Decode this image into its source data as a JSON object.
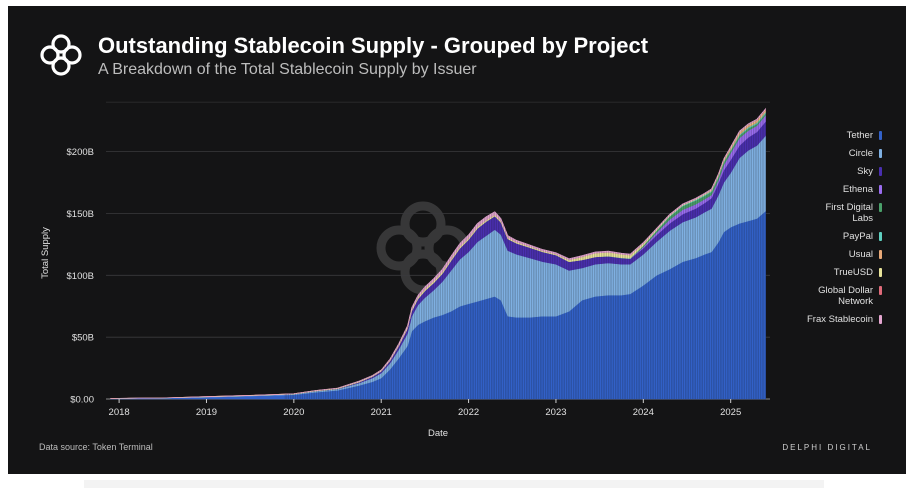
{
  "header": {
    "title": "Outstanding Stablecoin Supply - Grouped by Project",
    "subtitle": "A Breakdown of the Total Stablecoin Supply by Issuer"
  },
  "footer": {
    "source": "Data source: Token Terminal",
    "brand": "DELPHI DIGITAL"
  },
  "logo": {
    "icon": "delphi-knot-logo-icon"
  },
  "chart_data": {
    "type": "area",
    "stacked": true,
    "xlabel": "Date",
    "ylabel": "Total Supply",
    "x_ticks": [
      "2018",
      "2019",
      "2020",
      "2021",
      "2022",
      "2023",
      "2024",
      "2025"
    ],
    "y_ticks": [
      "$0.00",
      "$50B",
      "$100B",
      "$150B",
      "$200B"
    ],
    "y_tick_values": [
      0,
      50,
      100,
      150,
      200
    ],
    "x_range": [
      2017.85,
      2025.45
    ],
    "y_range": [
      0,
      245
    ],
    "grid": "horizontal",
    "legend_position": "right",
    "units": "USD billions",
    "x": [
      2017.9,
      2018.0,
      2018.5,
      2019.0,
      2019.5,
      2019.75,
      2020.0,
      2020.25,
      2020.5,
      2020.75,
      2020.9,
      2021.0,
      2021.1,
      2021.2,
      2021.3,
      2021.35,
      2021.42,
      2021.5,
      2021.6,
      2021.7,
      2021.8,
      2021.9,
      2022.0,
      2022.1,
      2022.2,
      2022.3,
      2022.37,
      2022.45,
      2022.55,
      2022.7,
      2022.85,
      2023.0,
      2023.15,
      2023.3,
      2023.45,
      2023.6,
      2023.75,
      2023.85,
      2024.0,
      2024.15,
      2024.3,
      2024.45,
      2024.6,
      2024.7,
      2024.78,
      2024.86,
      2024.92,
      2025.0,
      2025.1,
      2025.2,
      2025.3,
      2025.4
    ],
    "series": [
      {
        "name": "Tether",
        "color": "#3261c8",
        "values": [
          0.3,
          0.5,
          0.8,
          1.5,
          2.5,
          3.0,
          3.5,
          5.5,
          7.0,
          11.0,
          14.0,
          17.0,
          24.0,
          33.0,
          43.0,
          55.0,
          60.0,
          63.0,
          66.0,
          68.0,
          71.0,
          75.0,
          77.0,
          79.0,
          81.0,
          83.0,
          80.0,
          67.0,
          66.0,
          66.0,
          67.0,
          67.0,
          71.0,
          80.0,
          83.0,
          84.0,
          84.0,
          85.0,
          92.0,
          100.0,
          105.0,
          111.0,
          114.0,
          117.0,
          119.0,
          127.0,
          135.0,
          139.0,
          142.0,
          144.0,
          146.0,
          152.0
        ]
      },
      {
        "name": "Circle",
        "color": "#7fb0e2",
        "values": [
          0.0,
          0.0,
          0.0,
          0.2,
          0.2,
          0.3,
          0.5,
          0.8,
          1.0,
          2.0,
          3.0,
          4.0,
          5.0,
          7.0,
          10.0,
          12.0,
          16.0,
          19.0,
          22.0,
          27.0,
          33.0,
          38.0,
          42.0,
          48.0,
          51.0,
          54.0,
          53.0,
          53.0,
          51.0,
          48.0,
          44.0,
          42.0,
          33.0,
          26.0,
          26.0,
          26.0,
          25.0,
          24.0,
          25.0,
          27.0,
          31.0,
          32.0,
          33.0,
          34.0,
          35.0,
          38.0,
          40.0,
          44.0,
          53.0,
          57.0,
          59.0,
          61.0
        ]
      },
      {
        "name": "Sky",
        "color": "#4a2fb0",
        "values": [
          0.0,
          0.0,
          0.0,
          0.1,
          0.1,
          0.1,
          0.1,
          0.2,
          0.3,
          0.8,
          1.2,
          1.5,
          2.0,
          3.0,
          4.0,
          4.5,
          5.0,
          5.5,
          6.0,
          6.5,
          8.0,
          9.0,
          10.0,
          11.0,
          11.5,
          11.0,
          10.0,
          9.5,
          9.0,
          8.5,
          8.0,
          7.5,
          7.0,
          6.5,
          6.0,
          5.5,
          5.0,
          4.5,
          5.0,
          5.5,
          6.0,
          6.5,
          7.0,
          7.5,
          8.5,
          9.5,
          10.0,
          10.5,
          10.0,
          10.5,
          11.0,
          11.5
        ]
      },
      {
        "name": "Ethena",
        "color": "#9b6df0",
        "values": [
          0,
          0,
          0,
          0,
          0,
          0,
          0,
          0,
          0,
          0,
          0,
          0,
          0,
          0,
          0,
          0,
          0,
          0,
          0,
          0,
          0,
          0,
          0,
          0,
          0,
          0,
          0,
          0,
          0,
          0,
          0,
          0,
          0,
          0,
          0,
          0,
          0,
          0,
          1.0,
          2.0,
          3.0,
          3.5,
          3.5,
          3.0,
          2.5,
          2.6,
          4.0,
          5.5,
          6.0,
          5.5,
          5.0,
          5.0
        ]
      },
      {
        "name": "First Digital Labs",
        "color": "#4aa06a",
        "values": [
          0,
          0,
          0,
          0,
          0,
          0,
          0,
          0,
          0,
          0,
          0,
          0,
          0,
          0,
          0,
          0,
          0,
          0,
          0,
          0,
          0,
          0,
          0,
          0,
          0,
          0,
          0,
          0,
          0,
          0,
          0,
          0,
          0,
          0,
          0,
          0,
          0,
          0,
          1.0,
          1.5,
          2.5,
          3.0,
          3.0,
          2.8,
          2.5,
          2.5,
          2.5,
          2.0,
          2.0,
          1.8,
          1.5,
          1.5
        ]
      },
      {
        "name": "PayPal",
        "color": "#5fd0c0",
        "values": [
          0,
          0,
          0,
          0,
          0,
          0,
          0,
          0,
          0,
          0,
          0,
          0,
          0,
          0,
          0,
          0,
          0,
          0,
          0,
          0,
          0,
          0,
          0,
          0,
          0,
          0,
          0,
          0,
          0,
          0,
          0,
          0,
          0,
          0,
          0,
          0.2,
          0.3,
          0.4,
          0.3,
          0.4,
          0.5,
          0.6,
          0.7,
          0.8,
          0.8,
          0.7,
          0.6,
          0.6,
          0.8,
          0.9,
          1.0,
          1.0
        ]
      },
      {
        "name": "Usual",
        "color": "#e8a978",
        "values": [
          0,
          0,
          0,
          0,
          0,
          0,
          0,
          0,
          0,
          0,
          0,
          0,
          0,
          0,
          0,
          0,
          0,
          0,
          0,
          0,
          0,
          0,
          0,
          0,
          0,
          0,
          0,
          0,
          0,
          0,
          0,
          0,
          0,
          0,
          0,
          0,
          0,
          0,
          0,
          0,
          0,
          0,
          0,
          0.2,
          0.5,
          0.8,
          1.0,
          1.2,
          1.5,
          1.4,
          1.3,
          1.2
        ]
      },
      {
        "name": "TrueUSD",
        "color": "#e8e39a",
        "values": [
          0.0,
          0.1,
          0.1,
          0.2,
          0.2,
          0.2,
          0.2,
          0.3,
          0.4,
          0.5,
          0.5,
          0.5,
          0.6,
          0.8,
          1.0,
          1.2,
          1.3,
          1.4,
          1.4,
          1.3,
          1.3,
          1.3,
          1.2,
          1.2,
          1.1,
          1.0,
          1.0,
          1.0,
          0.9,
          0.9,
          0.8,
          0.8,
          1.5,
          2.5,
          3.0,
          3.0,
          2.8,
          2.5,
          1.5,
          0.8,
          0.6,
          0.5,
          0.5,
          0.5,
          0.5,
          0.5,
          0.5,
          0.5,
          0.5,
          0.5,
          0.5,
          0.5
        ]
      },
      {
        "name": "Global Dollar Network",
        "color": "#e06b7a",
        "values": [
          0,
          0,
          0,
          0,
          0,
          0,
          0,
          0,
          0,
          0,
          0,
          0,
          0,
          0,
          0,
          0,
          0,
          0,
          0,
          0,
          0,
          0,
          0,
          0,
          0,
          0,
          0,
          0,
          0,
          0,
          0,
          0,
          0,
          0,
          0,
          0,
          0,
          0,
          0,
          0,
          0,
          0,
          0,
          0,
          0,
          0,
          0,
          0.1,
          0.2,
          0.3,
          0.4,
          0.5
        ]
      },
      {
        "name": "Frax Stablecoin",
        "color": "#e4a6d0",
        "values": [
          0.0,
          0.0,
          0.0,
          0.0,
          0.0,
          0.0,
          0.0,
          0.1,
          0.2,
          0.3,
          0.4,
          0.5,
          0.8,
          1.0,
          1.2,
          1.4,
          1.6,
          1.8,
          2.0,
          2.2,
          2.4,
          2.5,
          2.6,
          2.7,
          2.8,
          2.5,
          2.0,
          1.6,
          1.4,
          1.2,
          1.1,
          1.0,
          1.0,
          1.0,
          0.9,
          0.9,
          0.8,
          0.8,
          0.8,
          0.7,
          0.7,
          0.7,
          0.7,
          0.6,
          0.6,
          0.6,
          0.6,
          0.6,
          0.6,
          0.6,
          0.6,
          0.6
        ]
      }
    ]
  }
}
